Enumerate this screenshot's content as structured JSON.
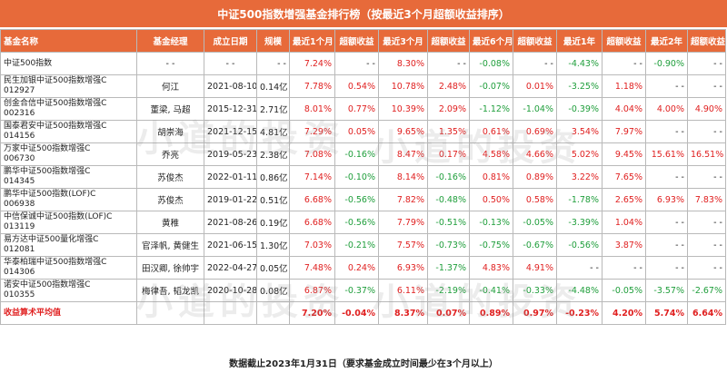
{
  "title": "中证500指数增强基金排行榜（按最近3个月超额收益排序）",
  "headers": [
    "基金名称",
    "基金经理",
    "成立日期",
    "规模",
    "最近1个月",
    "超额收益",
    "最近3个月",
    "超额收益",
    "最近6个月",
    "超额收益",
    "最近1年",
    "超额收益",
    "最近2年",
    "超额收益"
  ],
  "rows": [
    {
      "name": [
        "中证500指数"
      ],
      "mgr": "- -",
      "date": "- -",
      "size": "- -",
      "v": [
        "7.24%",
        "- -",
        "8.30%",
        "- -",
        "-0.08%",
        "- -",
        "-4.43%",
        "- -",
        "-0.90%",
        "- -"
      ]
    },
    {
      "name": [
        "民生加银中证500指数增强C",
        "012927"
      ],
      "mgr": "何江",
      "date": "2021-08-10",
      "size": "0.14亿",
      "v": [
        "7.78%",
        "0.54%",
        "10.78%",
        "2.48%",
        "-0.07%",
        "0.01%",
        "-3.25%",
        "1.18%",
        "- -",
        "- -"
      ]
    },
    {
      "name": [
        "创金合信中证500指数增强C",
        "002316"
      ],
      "mgr": "董梁, 马超",
      "date": "2015-12-31",
      "size": "2.71亿",
      "v": [
        "8.01%",
        "0.77%",
        "10.39%",
        "2.09%",
        "-1.12%",
        "-1.04%",
        "-0.39%",
        "4.04%",
        "4.00%",
        "4.90%"
      ]
    },
    {
      "name": [
        "国泰君安中证500指数增强C",
        "014156"
      ],
      "mgr": "胡崇海",
      "date": "2021-12-15",
      "size": "4.81亿",
      "v": [
        "7.29%",
        "0.05%",
        "9.65%",
        "1.35%",
        "0.61%",
        "0.69%",
        "3.54%",
        "7.97%",
        "- -",
        "- -"
      ]
    },
    {
      "name": [
        "万家中证500指数增强C",
        "006730"
      ],
      "mgr": "乔亮",
      "date": "2019-05-23",
      "size": "2.38亿",
      "v": [
        "7.08%",
        "-0.16%",
        "8.47%",
        "0.17%",
        "4.58%",
        "4.66%",
        "5.02%",
        "9.45%",
        "15.61%",
        "16.51%"
      ]
    },
    {
      "name": [
        "鹏华中证500指数增强C",
        "014345"
      ],
      "mgr": "苏俊杰",
      "date": "2022-01-11",
      "size": "0.86亿",
      "v": [
        "7.14%",
        "-0.10%",
        "8.14%",
        "-0.16%",
        "0.81%",
        "0.89%",
        "3.22%",
        "7.65%",
        "- -",
        "- -"
      ]
    },
    {
      "name": [
        "鹏华中证500指数(LOF)C",
        "006938"
      ],
      "mgr": "苏俊杰",
      "date": "2019-01-22",
      "size": "0.51亿",
      "v": [
        "6.68%",
        "-0.56%",
        "7.82%",
        "-0.48%",
        "0.50%",
        "0.58%",
        "-1.78%",
        "2.65%",
        "6.93%",
        "7.83%"
      ]
    },
    {
      "name": [
        "中信保诚中证500指数(LOF)C",
        "013119"
      ],
      "mgr": "黄稚",
      "date": "2021-08-26",
      "size": "0.19亿",
      "v": [
        "6.68%",
        "-0.56%",
        "7.79%",
        "-0.51%",
        "-0.13%",
        "-0.05%",
        "-3.39%",
        "1.04%",
        "- -",
        "- -"
      ]
    },
    {
      "name": [
        "易方达中证500量化增强C",
        "012081"
      ],
      "mgr": "官泽帆, 黄健生",
      "date": "2021-06-15",
      "size": "1.30亿",
      "v": [
        "7.03%",
        "-0.21%",
        "7.57%",
        "-0.73%",
        "-0.75%",
        "-0.67%",
        "-0.56%",
        "3.87%",
        "- -",
        "- -"
      ]
    },
    {
      "name": [
        "华泰柏瑞中证500指数增强C",
        "014306"
      ],
      "mgr": "田汉卿, 徐帅宇",
      "date": "2022-04-27",
      "size": "0.05亿",
      "v": [
        "7.48%",
        "0.24%",
        "6.93%",
        "-1.37%",
        "4.83%",
        "4.91%",
        "- -",
        "- -",
        "- -",
        "- -"
      ]
    },
    {
      "name": [
        "诺安中证500指数增强C",
        "010355"
      ],
      "mgr": "梅律吾, 韬龙凯",
      "date": "2020-10-28",
      "size": "0.08亿",
      "v": [
        "6.87%",
        "-0.37%",
        "6.11%",
        "-2.19%",
        "-0.41%",
        "-0.33%",
        "-4.48%",
        "-0.05%",
        "-3.57%",
        "-2.67%"
      ]
    }
  ],
  "avg": {
    "label": "收益算术平均值",
    "v": [
      "7.20%",
      "-0.04%",
      "8.37%",
      "0.07%",
      "0.89%",
      "0.97%",
      "-0.23%",
      "4.20%",
      "5.74%",
      "6.64%"
    ]
  },
  "footer": "数据截止2023年1月31日（要求基金成立时间最少在3个月以上）",
  "watermark": "小道的投资",
  "colors": {
    "header": "#e76a3a",
    "positive": "#e02020",
    "negative": "#1f9e3b"
  }
}
